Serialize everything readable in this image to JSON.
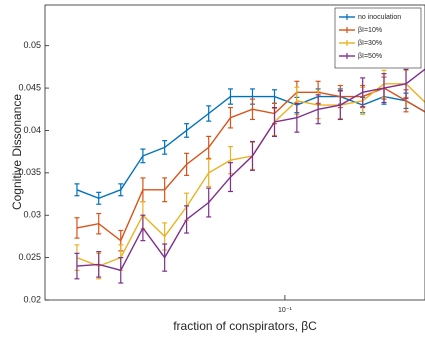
{
  "chart_data": {
    "type": "line",
    "log_x": true,
    "xlabel": "fraction of conspirators, βC",
    "ylabel": "Cognitive Dissonance",
    "x": [
      0.0224,
      0.0262,
      0.0307,
      0.036,
      0.0421,
      0.0493,
      0.0578,
      0.0676,
      0.0792,
      0.0928,
      0.109,
      0.127,
      0.149,
      0.175,
      0.204,
      0.239,
      0.28
    ],
    "xlim": [
      0.0178,
      0.274
    ],
    "xticks": [
      {
        "value": 0.1,
        "label": "10⁻¹"
      }
    ],
    "ylim": [
      0.02,
      0.0548
    ],
    "yticks": [
      0.02,
      0.025,
      0.03,
      0.035,
      0.04,
      0.045,
      0.05
    ],
    "legend": "upper right",
    "series": [
      {
        "name": "no inoculation",
        "color": "#0072bd",
        "values": [
          0.033,
          0.032,
          0.033,
          0.037,
          0.038,
          0.04,
          0.042,
          0.044,
          0.044,
          0.044,
          0.043,
          0.044,
          0.044,
          0.043,
          0.044,
          0.0435,
          0.042
        ],
        "errors": [
          0.0007,
          0.0007,
          0.0007,
          0.0008,
          0.0008,
          0.0008,
          0.0009,
          0.0009,
          0.0009,
          0.0008,
          0.0009,
          0.0009,
          0.0009,
          0.0009,
          0.0009,
          0.0009,
          0.0009
        ]
      },
      {
        "name": "βI=10%",
        "color": "#d95319",
        "values": [
          0.0285,
          0.029,
          0.027,
          0.033,
          0.033,
          0.036,
          0.038,
          0.0415,
          0.0425,
          0.042,
          0.0445,
          0.0445,
          0.044,
          0.044,
          0.045,
          0.0435,
          0.042
        ],
        "errors": [
          0.0012,
          0.0012,
          0.0012,
          0.0014,
          0.0014,
          0.0013,
          0.0013,
          0.0012,
          0.0012,
          0.0012,
          0.0013,
          0.0013,
          0.0013,
          0.0013,
          0.0013,
          0.0013,
          0.0013
        ]
      },
      {
        "name": "βI=30%",
        "color": "#edb120",
        "values": [
          0.025,
          0.024,
          0.025,
          0.03,
          0.0275,
          0.031,
          0.035,
          0.0365,
          0.037,
          0.041,
          0.0435,
          0.043,
          0.043,
          0.0435,
          0.0455,
          0.0455,
          0.043
        ],
        "errors": [
          0.0015,
          0.0015,
          0.0015,
          0.0016,
          0.0016,
          0.0016,
          0.0016,
          0.0016,
          0.0016,
          0.0016,
          0.0016,
          0.0016,
          0.0016,
          0.0016,
          0.0016,
          0.0016,
          0.0016
        ]
      },
      {
        "name": "βI=50%",
        "color": "#7e2f8e",
        "values": [
          0.024,
          0.0242,
          0.0235,
          0.0285,
          0.025,
          0.0295,
          0.0315,
          0.0345,
          0.037,
          0.041,
          0.0415,
          0.0425,
          0.043,
          0.0445,
          0.045,
          0.0455,
          0.0475
        ],
        "errors": [
          0.0015,
          0.0015,
          0.0015,
          0.0015,
          0.0016,
          0.0016,
          0.0017,
          0.0017,
          0.0017,
          0.0017,
          0.0017,
          0.0017,
          0.0017,
          0.0017,
          0.0017,
          0.0017,
          0.0017
        ]
      }
    ]
  }
}
